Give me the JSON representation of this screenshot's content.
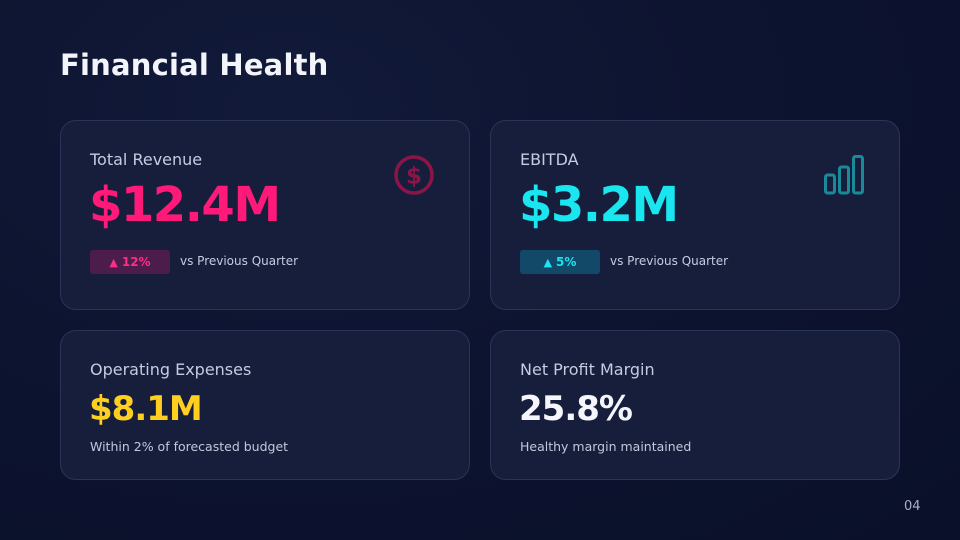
{
  "slide": {
    "title": "Financial Health",
    "page_number": "04"
  },
  "cards": {
    "revenue": {
      "label": "Total Revenue",
      "value": "$12.4M",
      "badge_arrow": "▲",
      "badge_change": "12%",
      "comparison": "vs Previous Quarter",
      "icon": "dollar-circle-icon",
      "accent_color": "#ff1a7a"
    },
    "ebitda": {
      "label": "EBITDA",
      "value": "$3.2M",
      "badge_arrow": "▲",
      "badge_change": "5%",
      "comparison": "vs Previous Quarter",
      "icon": "bar-chart-icon",
      "accent_color": "#19e6ee"
    },
    "opex": {
      "label": "Operating Expenses",
      "value": "$8.1M",
      "note": "Within 2% of forecasted budget",
      "accent_color": "#ffcf1f"
    },
    "margin": {
      "label": "Net Profit Margin",
      "value": "25.8%",
      "note": "Healthy margin maintained",
      "accent_color": "#f5f6fb"
    }
  }
}
